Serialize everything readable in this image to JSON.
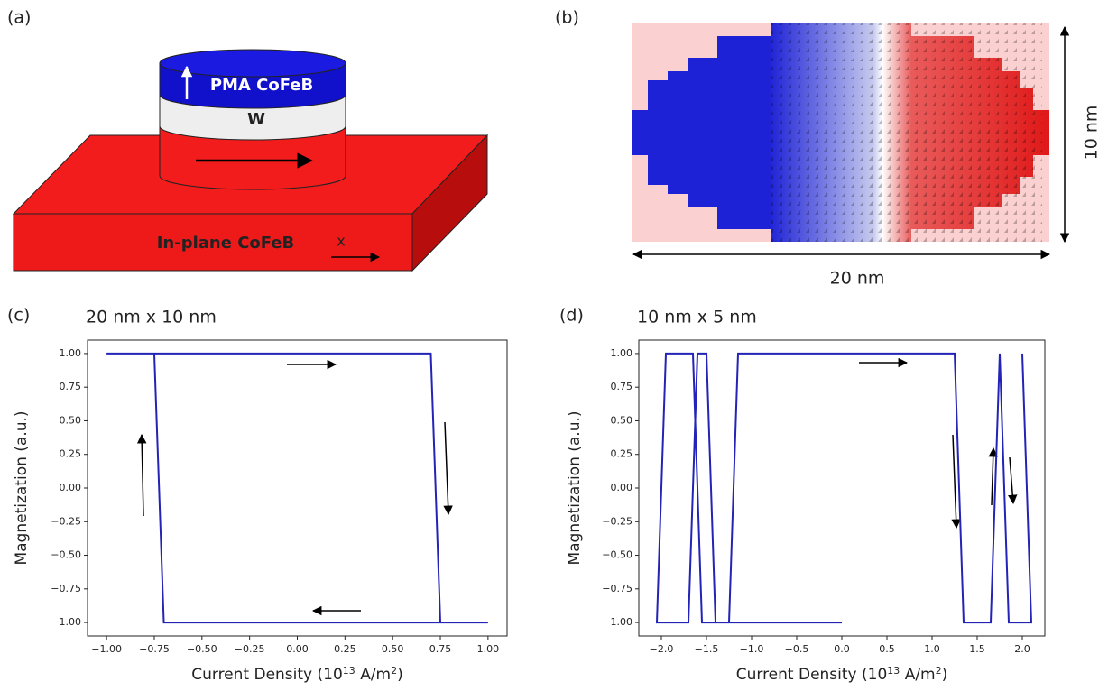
{
  "panels": {
    "a": {
      "label": "(a)",
      "top_layer": "PMA CoFeB",
      "spacer": "W",
      "bottom_layer": "In-plane CoFeB",
      "axis": "x"
    },
    "b": {
      "label": "(b)",
      "height": "10 nm",
      "width": "20 nm"
    }
  },
  "chart_data": [
    {
      "type": "line",
      "panel_label": "(c)",
      "title": "20 nm x 10 nm",
      "xlabel": [
        "Current Density (10",
        "13",
        " A/m",
        "2",
        ")"
      ],
      "ylabel": "Magnetization (a.u.)",
      "color": "#2323b8",
      "x": [
        -1,
        0.7,
        0.75,
        1,
        -0.7,
        -0.75,
        -1
      ],
      "values": [
        1,
        1,
        -1,
        -1,
        -1,
        1,
        1
      ],
      "xlim": [
        -1.1,
        1.1
      ],
      "ylim": [
        -1.1,
        1.1
      ],
      "xticks": [
        {
          "value": -1,
          "label": "−1.00"
        },
        {
          "value": -0.75,
          "label": "−0.75"
        },
        {
          "value": -0.5,
          "label": "−0.50"
        },
        {
          "value": -0.25,
          "label": "−0.25"
        },
        {
          "value": 0,
          "label": "0.00"
        },
        {
          "value": 0.25,
          "label": "0.25"
        },
        {
          "value": 0.5,
          "label": "0.50"
        },
        {
          "value": 0.75,
          "label": "0.75"
        },
        {
          "value": 1,
          "label": "1.00"
        }
      ],
      "yticks": [
        {
          "value": -1,
          "label": "−1.00"
        },
        {
          "value": -0.75,
          "label": "−0.75"
        },
        {
          "value": -0.5,
          "label": "−0.50"
        },
        {
          "value": -0.25,
          "label": "−0.25"
        },
        {
          "value": 0,
          "label": "0.00"
        },
        {
          "value": 0.25,
          "label": "0.25"
        },
        {
          "value": 0.5,
          "label": "0.50"
        },
        {
          "value": 0.75,
          "label": "0.75"
        },
        {
          "value": 1,
          "label": "1.00"
        }
      ]
    },
    {
      "type": "line",
      "panel_label": "(d)",
      "title": "10 nm x 5 nm",
      "xlabel": [
        "Current Density (10",
        "13",
        " A/m",
        "2",
        ")"
      ],
      "ylabel": "Magnetization (a.u.)",
      "color": "#2323b8",
      "x": [
        0,
        -1.4,
        -1.5,
        -1.6,
        -1.7,
        -2.05,
        -1.95,
        -1.65,
        -1.55,
        -1.25,
        -1.15,
        1.25,
        1.35,
        1.65,
        1.75,
        1.85,
        2.1,
        2.0
      ],
      "values": [
        -1,
        -1,
        1,
        1,
        -1,
        -1,
        1,
        1,
        -1,
        -1,
        1,
        1,
        -1,
        -1,
        1,
        -1,
        -1,
        1
      ],
      "xlim": [
        -2.25,
        2.25
      ],
      "ylim": [
        -1.1,
        1.1
      ],
      "xticks": [
        {
          "value": -2,
          "label": "−2.0"
        },
        {
          "value": -1.5,
          "label": "−1.5"
        },
        {
          "value": -1,
          "label": "−1.0"
        },
        {
          "value": -0.5,
          "label": "−0.5"
        },
        {
          "value": 0,
          "label": "0.0"
        },
        {
          "value": 0.5,
          "label": "0.5"
        },
        {
          "value": 1,
          "label": "1.0"
        },
        {
          "value": 1.5,
          "label": "1.5"
        },
        {
          "value": 2,
          "label": "2.0"
        }
      ],
      "yticks": [
        {
          "value": -1,
          "label": "−1.00"
        },
        {
          "value": -0.75,
          "label": "−0.75"
        },
        {
          "value": -0.5,
          "label": "−0.50"
        },
        {
          "value": -0.25,
          "label": "−0.25"
        },
        {
          "value": 0,
          "label": "0.00"
        },
        {
          "value": 0.25,
          "label": "0.25"
        },
        {
          "value": 0.5,
          "label": "0.50"
        },
        {
          "value": 0.75,
          "label": "0.75"
        },
        {
          "value": 1,
          "label": "1.00"
        }
      ]
    }
  ]
}
